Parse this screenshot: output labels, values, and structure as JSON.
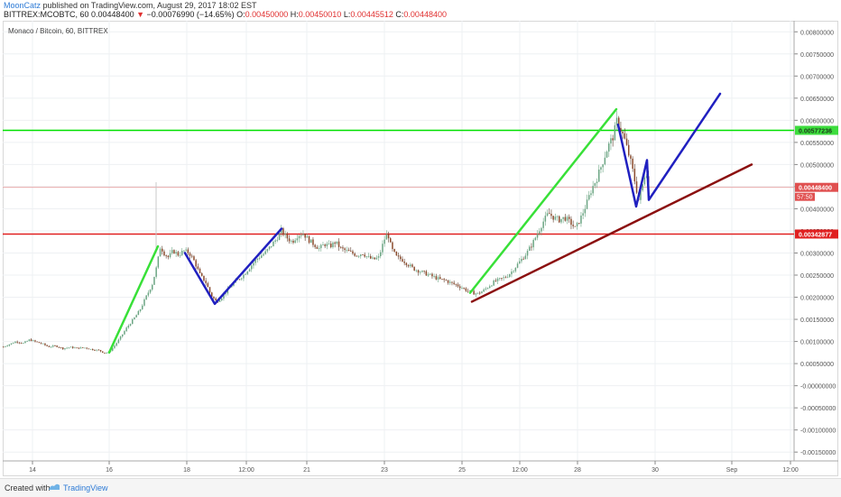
{
  "header": {
    "author": "MoonCatz",
    "published_text": " published on TradingView.com, August 29, 2017 18:02 EST",
    "symbol": "BITTREX:MCOBTC, 60",
    "price": "0.00448400",
    "arrow": "▼",
    "change": "−0.00076990 (−14.65%)",
    "o_label": "O:",
    "o_value": "0.00450000",
    "h_label": "H:",
    "h_value": "0.00450010",
    "l_label": "L:",
    "l_value": "0.00445512",
    "c_label": "C:",
    "c_value": "0.00448400"
  },
  "chart_data": {
    "type": "candlestick",
    "title": "Monaco / Bitcoin, 60, BITTREX",
    "ylim": [
      -0.0017,
      0.00825
    ],
    "x_tick_labels": [
      "14",
      "16",
      "18",
      "12:00",
      "21",
      "23",
      "25",
      "12:00",
      "28",
      "30",
      "Sep",
      "12:00"
    ],
    "y_tick_labels": [
      "0.00800000",
      "0.00750000",
      "0.00700000",
      "0.00650000",
      "0.00600000",
      "0.00550000",
      "0.00500000",
      "0.00450000",
      "0.00400000",
      "0.00350000",
      "0.00300000",
      "0.00250000",
      "0.00200000",
      "0.00150000",
      "0.00100000",
      "0.00050000",
      "-0.00000000",
      "-0.00050000",
      "-0.00100000",
      "-0.00150000"
    ],
    "y_tick_values": [
      0.008,
      0.0075,
      0.007,
      0.0065,
      0.006,
      0.0055,
      0.005,
      0.0045,
      0.004,
      0.0035,
      0.003,
      0.0025,
      0.002,
      0.0015,
      0.001,
      0.0005,
      0.0,
      -0.0005,
      -0.001,
      -0.0015
    ],
    "price_path": [
      [
        0,
        0.00088
      ],
      [
        7,
        0.00094
      ],
      [
        14,
        0.001
      ],
      [
        22,
        0.00096
      ],
      [
        29,
        0.00104
      ],
      [
        36,
        0.00099
      ],
      [
        43,
        0.00095
      ],
      [
        50,
        0.00088
      ],
      [
        58,
        0.0009
      ],
      [
        66,
        0.00084
      ],
      [
        74,
        0.00087
      ],
      [
        82,
        0.00085
      ],
      [
        90,
        0.00086
      ],
      [
        98,
        0.00082
      ],
      [
        106,
        0.0008
      ],
      [
        112,
        0.00074
      ],
      [
        117,
        0.00076
      ],
      [
        123,
        0.0009
      ],
      [
        130,
        0.0011
      ],
      [
        137,
        0.00132
      ],
      [
        144,
        0.0015
      ],
      [
        151,
        0.0017
      ],
      [
        158,
        0.002
      ],
      [
        165,
        0.0023
      ],
      [
        170,
        0.0027
      ],
      [
        174,
        0.00315
      ],
      [
        178,
        0.003
      ],
      [
        183,
        0.0029
      ],
      [
        188,
        0.00305
      ],
      [
        194,
        0.00296
      ],
      [
        200,
        0.00305
      ],
      [
        206,
        0.003
      ],
      [
        212,
        0.0028
      ],
      [
        218,
        0.0025
      ],
      [
        224,
        0.00235
      ],
      [
        230,
        0.00205
      ],
      [
        236,
        0.0019
      ],
      [
        242,
        0.002
      ],
      [
        248,
        0.00215
      ],
      [
        254,
        0.0023
      ],
      [
        260,
        0.0024
      ],
      [
        266,
        0.0025
      ],
      [
        272,
        0.00265
      ],
      [
        278,
        0.0028
      ],
      [
        284,
        0.00292
      ],
      [
        290,
        0.003
      ],
      [
        296,
        0.00315
      ],
      [
        302,
        0.0033
      ],
      [
        308,
        0.0035
      ],
      [
        314,
        0.00335
      ],
      [
        320,
        0.00325
      ],
      [
        326,
        0.0034
      ],
      [
        332,
        0.00345
      ],
      [
        338,
        0.0033
      ],
      [
        344,
        0.0032
      ],
      [
        350,
        0.0031
      ],
      [
        356,
        0.0032
      ],
      [
        362,
        0.00315
      ],
      [
        368,
        0.00325
      ],
      [
        374,
        0.0031
      ],
      [
        380,
        0.00305
      ],
      [
        386,
        0.003
      ],
      [
        392,
        0.00295
      ],
      [
        398,
        0.003
      ],
      [
        404,
        0.0029
      ],
      [
        410,
        0.00285
      ],
      [
        416,
        0.0029
      ],
      [
        422,
        0.0033
      ],
      [
        426,
        0.00345
      ],
      [
        430,
        0.0031
      ],
      [
        436,
        0.0029
      ],
      [
        442,
        0.00285
      ],
      [
        448,
        0.00275
      ],
      [
        454,
        0.00265
      ],
      [
        460,
        0.0026
      ],
      [
        466,
        0.00255
      ],
      [
        472,
        0.0025
      ],
      [
        478,
        0.00245
      ],
      [
        484,
        0.0024
      ],
      [
        490,
        0.00238
      ],
      [
        496,
        0.00232
      ],
      [
        502,
        0.00228
      ],
      [
        508,
        0.00222
      ],
      [
        514,
        0.00215
      ],
      [
        520,
        0.0021
      ],
      [
        526,
        0.00208
      ],
      [
        532,
        0.00215
      ],
      [
        538,
        0.00225
      ],
      [
        544,
        0.00235
      ],
      [
        550,
        0.0024
      ],
      [
        556,
        0.00245
      ],
      [
        562,
        0.00255
      ],
      [
        568,
        0.0027
      ],
      [
        574,
        0.00285
      ],
      [
        580,
        0.003
      ],
      [
        586,
        0.0032
      ],
      [
        592,
        0.00345
      ],
      [
        598,
        0.0037
      ],
      [
        604,
        0.0039
      ],
      [
        610,
        0.0038
      ],
      [
        616,
        0.00375
      ],
      [
        622,
        0.0038
      ],
      [
        628,
        0.0037
      ],
      [
        634,
        0.00355
      ],
      [
        640,
        0.0038
      ],
      [
        646,
        0.0041
      ],
      [
        652,
        0.00445
      ],
      [
        658,
        0.0047
      ],
      [
        664,
        0.00505
      ],
      [
        670,
        0.0054
      ],
      [
        676,
        0.00565
      ],
      [
        680,
        0.006
      ],
      [
        684,
        0.0058
      ],
      [
        688,
        0.0056
      ],
      [
        692,
        0.0053
      ],
      [
        696,
        0.005
      ],
      [
        700,
        0.0046
      ],
      [
        704,
        0.0042
      ],
      [
        708,
        0.0045
      ],
      [
        712,
        0.0049
      ],
      [
        716,
        0.00448
      ]
    ],
    "horizontal_lines": [
      {
        "price": 0.00577236,
        "color": "#00e000",
        "label": "0.00577236"
      },
      {
        "price": 0.00342877,
        "color": "#e02020",
        "label": "0.00342877"
      },
      {
        "price": 0.004484,
        "color": "#e8a0a0",
        "label": "0.00448400",
        "thin": true
      }
    ],
    "last_price_label": "0.00448400",
    "countdown_label": "57:50",
    "drawings": [
      {
        "color": "#38e038",
        "width": 2.5,
        "points": [
          [
            118,
            0.00075
          ],
          [
            172,
            0.00315
          ]
        ]
      },
      {
        "color": "#2020c0",
        "width": 2.5,
        "points": [
          [
            202,
            0.003
          ],
          [
            235,
            0.00185
          ],
          [
            309,
            0.00355
          ]
        ]
      },
      {
        "color": "#38e038",
        "width": 2.5,
        "points": [
          [
            518,
            0.0021
          ],
          [
            680,
            0.00625
          ]
        ]
      },
      {
        "color": "#2020c0",
        "width": 2.5,
        "points": [
          [
            682,
            0.0059
          ],
          [
            702,
            0.00405
          ],
          [
            714,
            0.0051
          ],
          [
            716,
            0.0042
          ],
          [
            795,
            0.0066
          ]
        ]
      },
      {
        "color": "#8b0f0f",
        "width": 2.5,
        "points": [
          [
            520,
            0.0019
          ],
          [
            830,
            0.005
          ]
        ]
      }
    ]
  },
  "footer": {
    "created_with": "Created with",
    "brand": "TradingView"
  }
}
